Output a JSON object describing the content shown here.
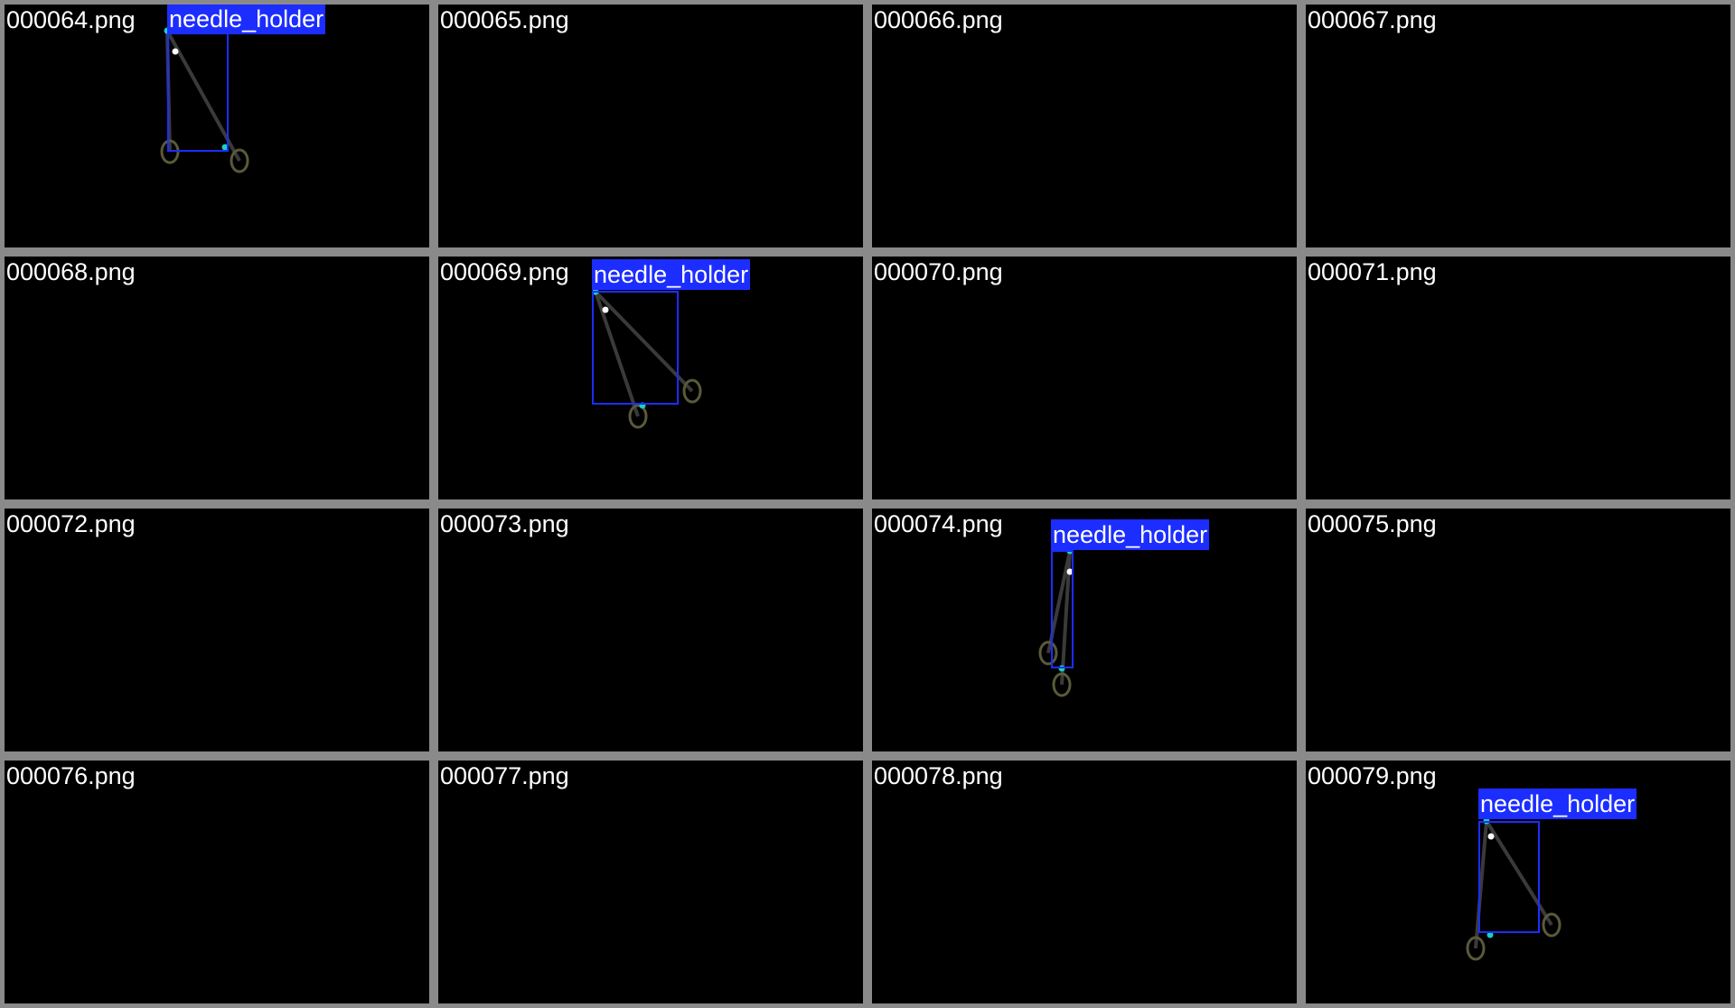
{
  "class_label": "needle_holder",
  "colors": {
    "background": "#000000",
    "tile_border": "#8a8a8a",
    "box_and_label": "#1c2dff",
    "keypoint": "#17d1c6",
    "tip_point": "#ffffff",
    "instrument_shaft": "#3a3a3a",
    "instrument_ring": "#5a5a3a"
  },
  "icons": [
    "needle-holder-instrument-icon"
  ],
  "tiles": [
    {
      "filename": "000064.png"
    },
    {
      "filename": "000068.png"
    },
    {
      "filename": "000072.png"
    },
    {
      "filename": "000076.png"
    },
    {
      "filename": "000065.png"
    },
    {
      "filename": "000069.png"
    },
    {
      "filename": "000073.png"
    },
    {
      "filename": "000077.png"
    },
    {
      "filename": "000066.png"
    },
    {
      "filename": "000070.png"
    },
    {
      "filename": "000074.png"
    },
    {
      "filename": "000078.png"
    },
    {
      "filename": "000067.png"
    },
    {
      "filename": "000071.png"
    },
    {
      "filename": "000075.png"
    },
    {
      "filename": "000079.png"
    }
  ]
}
